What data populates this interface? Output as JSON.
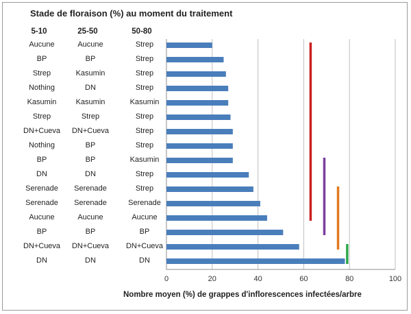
{
  "chart_data": {
    "type": "bar",
    "orientation": "horizontal",
    "title": "Stade de floraison (%) au moment du traitement",
    "xlabel": "Nombre moyen (%) de grappes d'inflorescences infectées/arbre",
    "ylabel": "",
    "xlim": [
      0,
      100
    ],
    "xticks": [
      0,
      20,
      40,
      60,
      80,
      100
    ],
    "grid": "vertical",
    "bar_color": "#4a7ebb",
    "label_columns": [
      "5-10",
      "25-50",
      "50-80"
    ],
    "rows": [
      {
        "labels": [
          "Aucune",
          "Aucune",
          "Strep"
        ],
        "value": 20
      },
      {
        "labels": [
          "BP",
          "BP",
          "Strep"
        ],
        "value": 25
      },
      {
        "labels": [
          "Strep",
          "Kasumin",
          "Strep"
        ],
        "value": 26
      },
      {
        "labels": [
          "Nothing",
          "DN",
          "Strep"
        ],
        "value": 27
      },
      {
        "labels": [
          "Kasumin",
          "Kasumin",
          "Kasumin"
        ],
        "value": 27
      },
      {
        "labels": [
          "Strep",
          "Strep",
          "Strep"
        ],
        "value": 28
      },
      {
        "labels": [
          "DN+Cueva",
          "DN+Cueva",
          "Strep"
        ],
        "value": 29
      },
      {
        "labels": [
          "Nothing",
          "BP",
          "Strep"
        ],
        "value": 29
      },
      {
        "labels": [
          "BP",
          "BP",
          "Kasumin"
        ],
        "value": 29
      },
      {
        "labels": [
          "DN",
          "DN",
          "Strep"
        ],
        "value": 36
      },
      {
        "labels": [
          "Serenade",
          "Serenade",
          "Strep"
        ],
        "value": 38
      },
      {
        "labels": [
          "Serenade",
          "Serenade",
          "Serenade"
        ],
        "value": 41
      },
      {
        "labels": [
          "Aucune",
          "Aucune",
          "Aucune"
        ],
        "value": 44
      },
      {
        "labels": [
          "BP",
          "BP",
          "BP"
        ],
        "value": 51
      },
      {
        "labels": [
          "DN+Cueva",
          "DN+Cueva",
          "DN+Cueva"
        ],
        "value": 58
      },
      {
        "labels": [
          "DN",
          "DN",
          "DN"
        ],
        "value": 78
      }
    ],
    "significance_lines": [
      {
        "color": "#cc1f1f",
        "x": 63,
        "from_row": 0,
        "to_row": 12
      },
      {
        "color": "#7b3f9e",
        "x": 69,
        "from_row": 8,
        "to_row": 13
      },
      {
        "color": "#e07b20",
        "x": 75,
        "from_row": 10,
        "to_row": 14
      },
      {
        "color": "#2ea84a",
        "x": 79,
        "from_row": 14,
        "to_row": 15
      }
    ]
  }
}
